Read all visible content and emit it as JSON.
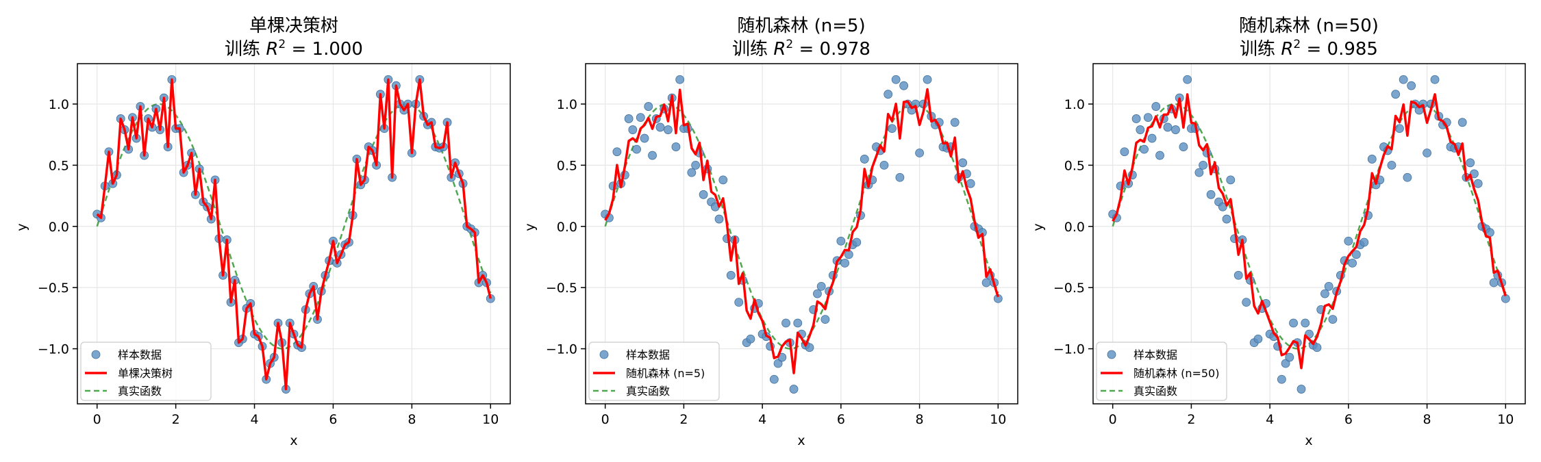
{
  "colors": {
    "scatter": "#5b8fc0",
    "prediction": "#ff0000",
    "true_function": "#4fa84f",
    "grid": "#e6e6e6",
    "axes": "#000000"
  },
  "chart_data": [
    {
      "type": "scatter",
      "title_line1": "单棵决策树",
      "title_line2_prefix": "训练",
      "title_r2_label": "R",
      "title_r2_exp": "2",
      "title_r2_value": " = 1.000",
      "xlabel": "x",
      "ylabel": "y",
      "xlim": [
        -0.5,
        10.5
      ],
      "ylim": [
        -1.45,
        1.33
      ],
      "xticks": [
        0,
        2,
        4,
        6,
        8,
        10
      ],
      "yticks": [
        -1.0,
        -0.5,
        0.0,
        0.5,
        1.0
      ],
      "xtick_labels": [
        "0",
        "2",
        "4",
        "6",
        "8",
        "10"
      ],
      "ytick_labels": [
        "−1.0",
        "−0.5",
        "0.0",
        "0.5",
        "1.0"
      ],
      "grid": true,
      "legend_position": "lower-left",
      "legend": [
        "样本数据",
        "单棵决策树",
        "真实函数"
      ],
      "prediction_mode": "exact"
    },
    {
      "type": "scatter",
      "title_line1": "随机森林 (n=5)",
      "title_line2_prefix": "训练",
      "title_r2_label": "R",
      "title_r2_exp": "2",
      "title_r2_value": " = 0.978",
      "xlabel": "x",
      "ylabel": "y",
      "xlim": [
        -0.5,
        10.5
      ],
      "ylim": [
        -1.45,
        1.33
      ],
      "xticks": [
        0,
        2,
        4,
        6,
        8,
        10
      ],
      "yticks": [
        -1.0,
        -0.5,
        0.0,
        0.5,
        1.0
      ],
      "xtick_labels": [
        "0",
        "2",
        "4",
        "6",
        "8",
        "10"
      ],
      "ytick_labels": [
        "−1.0",
        "−0.5",
        "0.0",
        "0.5",
        "1.0"
      ],
      "grid": true,
      "legend_position": "lower-left",
      "legend": [
        "样本数据",
        "随机森林 (n=5)",
        "真实函数"
      ],
      "prediction_mode": "forest5"
    },
    {
      "type": "scatter",
      "title_line1": "随机森林 (n=50)",
      "title_line2_prefix": "训练",
      "title_r2_label": "R",
      "title_r2_exp": "2",
      "title_r2_value": " = 0.985",
      "xlabel": "x",
      "ylabel": "y",
      "xlim": [
        -0.5,
        10.5
      ],
      "ylim": [
        -1.45,
        1.33
      ],
      "xticks": [
        0,
        2,
        4,
        6,
        8,
        10
      ],
      "yticks": [
        -1.0,
        -0.5,
        0.0,
        0.5,
        1.0
      ],
      "xtick_labels": [
        "0",
        "2",
        "4",
        "6",
        "8",
        "10"
      ],
      "ytick_labels": [
        "−1.0",
        "−0.5",
        "0.0",
        "0.5",
        "1.0"
      ],
      "grid": true,
      "legend_position": "lower-left",
      "legend": [
        "样本数据",
        "随机森林 (n=50)",
        "真实函数"
      ],
      "prediction_mode": "forest50"
    }
  ],
  "samples": {
    "x": [
      0.0,
      0.1,
      0.2,
      0.3,
      0.4,
      0.5,
      0.6,
      0.7,
      0.8,
      0.9,
      1.0,
      1.1,
      1.2,
      1.3,
      1.4,
      1.5,
      1.6,
      1.7,
      1.8,
      1.9,
      2.0,
      2.1,
      2.2,
      2.3,
      2.4,
      2.5,
      2.6,
      2.7,
      2.8,
      2.9,
      3.0,
      3.1,
      3.2,
      3.3,
      3.4,
      3.5,
      3.6,
      3.7,
      3.8,
      3.9,
      4.0,
      4.1,
      4.2,
      4.3,
      4.4,
      4.5,
      4.6,
      4.7,
      4.8,
      4.9,
      5.0,
      5.1,
      5.2,
      5.3,
      5.4,
      5.5,
      5.6,
      5.7,
      5.8,
      5.9,
      6.0,
      6.1,
      6.2,
      6.3,
      6.4,
      6.5,
      6.6,
      6.7,
      6.8,
      6.9,
      7.0,
      7.1,
      7.2,
      7.3,
      7.4,
      7.5,
      7.6,
      7.7,
      7.8,
      7.9,
      8.0,
      8.1,
      8.2,
      8.3,
      8.4,
      8.5,
      8.6,
      8.7,
      8.8,
      8.9,
      9.0,
      9.1,
      9.2,
      9.3,
      9.4,
      9.5,
      9.6,
      9.7,
      9.8,
      9.9,
      10.0
    ],
    "y": [
      0.1,
      0.07,
      0.33,
      0.61,
      0.35,
      0.42,
      0.88,
      0.79,
      0.63,
      0.89,
      0.72,
      0.98,
      0.58,
      0.88,
      0.81,
      0.96,
      0.79,
      1.05,
      0.65,
      1.2,
      0.8,
      0.8,
      0.44,
      0.5,
      0.6,
      0.26,
      0.47,
      0.2,
      0.16,
      0.06,
      0.38,
      -0.1,
      -0.4,
      -0.11,
      -0.62,
      -0.44,
      -0.95,
      -0.92,
      -0.67,
      -0.63,
      -0.88,
      -0.9,
      -0.98,
      -1.25,
      -1.12,
      -1.07,
      -0.79,
      -0.95,
      -1.33,
      -0.79,
      -0.88,
      -0.97,
      -0.99,
      -0.68,
      -0.55,
      -0.49,
      -0.76,
      -0.53,
      -0.4,
      -0.28,
      -0.12,
      -0.3,
      -0.23,
      -0.15,
      -0.13,
      0.09,
      0.55,
      0.34,
      0.38,
      0.65,
      0.62,
      0.5,
      1.08,
      0.8,
      1.2,
      0.4,
      1.15,
      1.0,
      0.95,
      1.0,
      0.6,
      1.0,
      1.2,
      0.9,
      0.83,
      0.85,
      0.65,
      0.64,
      0.65,
      0.85,
      0.4,
      0.52,
      0.43,
      0.35,
      0.0,
      -0.02,
      -0.05,
      -0.46,
      -0.4,
      -0.46,
      -0.59
    ]
  }
}
